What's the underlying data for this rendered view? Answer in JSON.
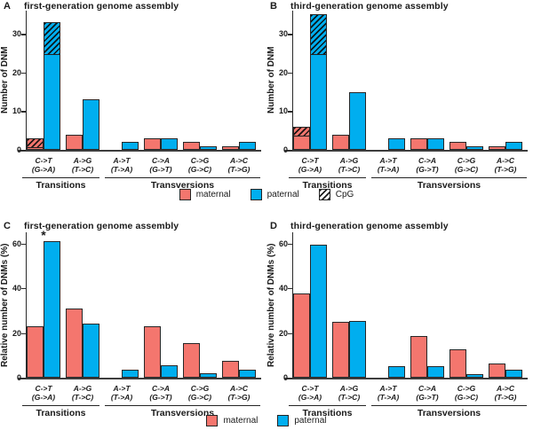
{
  "colors": {
    "maternal": "#F4766E",
    "paternal": "#00AEEF",
    "axis": "#2a2a2a"
  },
  "shared": {
    "group_labels": [
      {
        "label": "Transitions",
        "from": 0,
        "to": 1
      },
      {
        "label": "Transversions",
        "from": 2,
        "to": 5
      }
    ]
  },
  "legend_top": [
    {
      "label": "maternal",
      "swatch": "maternal"
    },
    {
      "label": "paternal",
      "swatch": "paternal"
    },
    {
      "label": "CpG",
      "swatch": "cpg"
    }
  ],
  "legend_bottom": [
    {
      "label": "maternal",
      "swatch": "maternal"
    },
    {
      "label": "paternal",
      "swatch": "paternal"
    }
  ],
  "chart_data": [
    {
      "panel": "A",
      "type": "bar",
      "title": "first-generation genome assembly",
      "ylabel": "Number of DNM",
      "ylim": [
        0,
        36
      ],
      "yticks": [
        0,
        10,
        20,
        30
      ],
      "grid": false,
      "categories": [
        "C->T (G->A)",
        "A->G (T->C)",
        "A->T (T->A)",
        "C->A (G->T)",
        "C->G (G->C)",
        "A->C (T->G)"
      ],
      "series": [
        {
          "name": "maternal",
          "values": [
            3,
            4,
            0,
            3,
            2,
            1
          ]
        },
        {
          "name": "paternal",
          "values": [
            33,
            13,
            2,
            3,
            1,
            2
          ]
        }
      ],
      "cpg_hatch_from": {
        "maternal": [
          1,
          null,
          null,
          null,
          null,
          null
        ],
        "paternal": [
          25,
          null,
          null,
          null,
          null,
          null
        ]
      }
    },
    {
      "panel": "B",
      "type": "bar",
      "title": "third-generation genome assembly",
      "ylabel": "Number of DNM",
      "ylim": [
        0,
        36
      ],
      "yticks": [
        0,
        10,
        20,
        30
      ],
      "grid": false,
      "categories": [
        "C->T (G->A)",
        "A->G (T->C)",
        "A->T (T->A)",
        "C->A (G->T)",
        "C->G (G->C)",
        "A->C (T->G)"
      ],
      "series": [
        {
          "name": "maternal",
          "values": [
            6,
            4,
            0,
            3,
            2,
            1
          ]
        },
        {
          "name": "paternal",
          "values": [
            35,
            15,
            3,
            3,
            1,
            2
          ]
        }
      ],
      "cpg_hatch_from": {
        "maternal": [
          4,
          null,
          null,
          null,
          null,
          null
        ],
        "paternal": [
          25,
          null,
          null,
          null,
          null,
          null
        ]
      }
    },
    {
      "panel": "C",
      "type": "bar",
      "title": "first-generation genome assembly",
      "ylabel": "Relative number of DNMs (%)",
      "ylim": [
        0,
        65
      ],
      "yticks": [
        0,
        20,
        40,
        60
      ],
      "grid": false,
      "categories": [
        "C->T (G->A)",
        "A->G (T->C)",
        "A->T (T->A)",
        "C->A (G->T)",
        "C->G (G->C)",
        "A->C (T->G)"
      ],
      "series": [
        {
          "name": "maternal",
          "values": [
            23.1,
            30.8,
            0,
            23.1,
            15.4,
            7.7
          ]
        },
        {
          "name": "paternal",
          "values": [
            61.1,
            24.1,
            3.7,
            5.6,
            1.9,
            3.7
          ]
        }
      ],
      "annotations": [
        {
          "text": "*",
          "category_index": 0,
          "series": "paternal"
        }
      ]
    },
    {
      "panel": "D",
      "type": "bar",
      "title": "third-generation genome assembly",
      "ylabel": "Relative number of DNMs (%)",
      "ylim": [
        0,
        65
      ],
      "yticks": [
        0,
        20,
        40,
        60
      ],
      "grid": false,
      "categories": [
        "C->T (G->A)",
        "A->G (T->C)",
        "A->T (T->A)",
        "C->A (G->T)",
        "C->G (G->C)",
        "A->C (T->G)"
      ],
      "series": [
        {
          "name": "maternal",
          "values": [
            37.5,
            25.0,
            0,
            18.8,
            12.5,
            6.3
          ]
        },
        {
          "name": "paternal",
          "values": [
            59.3,
            25.4,
            5.1,
            5.1,
            1.7,
            3.4
          ]
        }
      ]
    }
  ]
}
